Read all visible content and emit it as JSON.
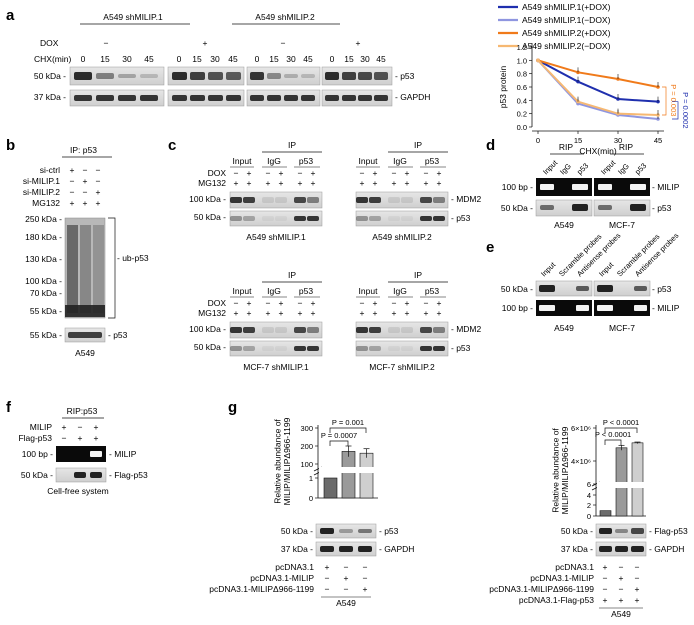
{
  "panels": {
    "a": {
      "letter": "a",
      "group1": "A549 shMILIP.1",
      "group2": "A549 shMILIP.2",
      "dox_label": "DOX",
      "dox_values": [
        "−",
        "+",
        "−",
        "+"
      ],
      "chx_label": "CHX(min)",
      "chx_values": [
        "0",
        "15",
        "30",
        "45",
        "0",
        "15",
        "30",
        "45",
        "0",
        "15",
        "30",
        "45",
        "0",
        "15",
        "30",
        "45"
      ],
      "mw_50": "50 kDa -",
      "mw_37": "37 kDa -",
      "band_p53": "- p53",
      "band_gapdh": "- GAPDH",
      "chart_data": {
        "type": "line",
        "x": [
          0,
          15,
          30,
          45
        ],
        "xlabel": "CHX(min)",
        "ylabel": "p53 protein",
        "xticks": [
          "0",
          "15",
          "30",
          "45"
        ],
        "yticks": [
          "0.0",
          "0.2",
          "0.4",
          "0.6",
          "0.8",
          "1.0",
          "1.2"
        ],
        "ylim": [
          0,
          1.2
        ],
        "xlim": [
          0,
          45
        ],
        "legend_position": "top",
        "series": [
          {
            "name": "A549 shMILIP.1(+DOX)",
            "color": "#1f2fae",
            "values": [
              1.0,
              0.68,
              0.42,
              0.38
            ]
          },
          {
            "name": "A549 shMILIP.1(−DOX)",
            "color": "#8f96e0",
            "values": [
              1.0,
              0.35,
              0.18,
              0.12
            ]
          },
          {
            "name": "A549 shMILIP.2(+DOX)",
            "color": "#f07a1a",
            "values": [
              1.0,
              0.82,
              0.72,
              0.6
            ]
          },
          {
            "name": "A549 shMILIP.2(−DOX)",
            "color": "#f6b872",
            "values": [
              1.0,
              0.38,
              0.2,
              0.18
            ]
          }
        ],
        "annotations": [
          "P = 0.003",
          "P = 0.0002"
        ]
      }
    },
    "b": {
      "letter": "b",
      "ip": "IP: p53",
      "rows": [
        {
          "label": "si-ctrl",
          "values": [
            "+",
            "−",
            "−"
          ]
        },
        {
          "label": "si-MILIP.1",
          "values": [
            "−",
            "+",
            "−"
          ]
        },
        {
          "label": "si-MILIP.2",
          "values": [
            "−",
            "−",
            "+"
          ]
        },
        {
          "label": "MG132",
          "values": [
            "+",
            "+",
            "+"
          ]
        }
      ],
      "mw": [
        "250 kDa",
        "180 kDa",
        "130 kDa",
        "100 kDa",
        "70 kDa",
        "55 kDa",
        "55 kDa"
      ],
      "band_ub": "- ub-p53",
      "band_p53": "- p53",
      "cell": "A549"
    },
    "c": {
      "letter": "c",
      "ip": "IP",
      "input": "Input",
      "igg": "IgG",
      "p53": "p53",
      "dox": "DOX",
      "mg132": "MG132",
      "dox_row": [
        "−",
        "+",
        "−",
        "+",
        "−",
        "+"
      ],
      "mg_row": [
        "+",
        "+",
        "+",
        "+",
        "+",
        "+"
      ],
      "mw_100": "100 kDa -",
      "mw_50": "50 kDa -",
      "band_mdm2": "- MDM2",
      "band_p53": "- p53",
      "blots": [
        "A549 shMILIP.1",
        "A549 shMILIP.2",
        "MCF-7 shMILIP.1",
        "MCF-7 shMILIP.2"
      ]
    },
    "d": {
      "letter": "d",
      "rip": "RIP",
      "cols": [
        "Input",
        "IgG",
        "p53"
      ],
      "mw_100": "100 bp -",
      "mw_50": "50 kDa -",
      "band_milip": "- MILIP",
      "band_p53": "- p53",
      "cells": [
        "A549",
        "MCF-7"
      ]
    },
    "e": {
      "letter": "e",
      "cols": [
        "Input",
        "Scramble probes",
        "Antisense probes"
      ],
      "mw_50": "50 kDa -",
      "mw_100": "100 bp -",
      "band_p53": "- p53",
      "band_milip": "- MILIP",
      "cells": [
        "A549",
        "MCF-7"
      ]
    },
    "f": {
      "letter": "f",
      "rip": "RIP:p53",
      "rows": [
        {
          "label": "MILIP",
          "values": [
            "+",
            "−",
            "+"
          ]
        },
        {
          "label": "Flag-p53",
          "values": [
            "−",
            "+",
            "+"
          ]
        }
      ],
      "mw_100": "100 bp -",
      "mw_50": "50 kDa -",
      "band_milip": "- MILIP",
      "band_flag": "- Flag-p53",
      "caption": "Cell-free system"
    },
    "g": {
      "letter": "g",
      "left": {
        "chart_data": {
          "type": "bar",
          "ylabel": "Relative abundance of MILIP/MILIPΔ966-1199",
          "categories": [
            "pcDNA3.1",
            "pcDNA3.1-MILIP",
            "pcDNA3.1-MILIPΔ966-1199"
          ],
          "values": [
            1,
            170,
            160
          ],
          "errors": [
            0,
            30,
            25
          ],
          "colors": [
            "#6b6b6b",
            "#9a9a9a",
            "#cfcfcf"
          ],
          "yticks_low": [
            "0",
            "1"
          ],
          "yticks_high": [
            "100",
            "200",
            "300"
          ],
          "annotations": [
            "P = 0.0007",
            "P = 0.001"
          ]
        },
        "mw_50": "50 kDa -",
        "mw_37": "37 kDa -",
        "band_p53": "- p53",
        "band_gapdh": "- GAPDH",
        "rows": [
          {
            "label": "pcDNA3.1",
            "values": [
              "+",
              "−",
              "−"
            ]
          },
          {
            "label": "pcDNA3.1-MILIP",
            "values": [
              "−",
              "+",
              "−"
            ]
          },
          {
            "label": "pcDNA3.1-MILIPΔ966-1199",
            "values": [
              "−",
              "−",
              "+"
            ]
          }
        ],
        "cell": "A549"
      },
      "right": {
        "chart_data": {
          "type": "bar",
          "ylabel": "Relative abundance of MILIP/MILIPΔ966-1199",
          "categories": [
            "pcDNA3.1",
            "pcDNA3.1-MILIP",
            "pcDNA3.1-MILIPΔ966-1199"
          ],
          "values": [
            1,
            4800000,
            5100000
          ],
          "errors": [
            0,
            150000,
            50000
          ],
          "colors": [
            "#6b6b6b",
            "#9a9a9a",
            "#cfcfcf"
          ],
          "yticks_low": [
            "0",
            "2",
            "4",
            "6"
          ],
          "yticks_high": [
            "4×10⁶",
            "6×10⁶"
          ],
          "annotations": [
            "P < 0.0001",
            "P < 0.0001"
          ]
        },
        "mw_50": "50 kDa -",
        "mw_37": "37 kDa -",
        "band_flag": "- Flag-p53",
        "band_gapdh": "- GAPDH",
        "rows": [
          {
            "label": "pcDNA3.1",
            "values": [
              "+",
              "−",
              "−"
            ]
          },
          {
            "label": "pcDNA3.1-MILIP",
            "values": [
              "−",
              "+",
              "−"
            ]
          },
          {
            "label": "pcDNA3.1-MILIPΔ966-1199",
            "values": [
              "−",
              "−",
              "+"
            ]
          },
          {
            "label": "pcDNA3.1-Flag-p53",
            "values": [
              "+",
              "+",
              "+"
            ]
          }
        ],
        "cell": "A549"
      }
    }
  }
}
